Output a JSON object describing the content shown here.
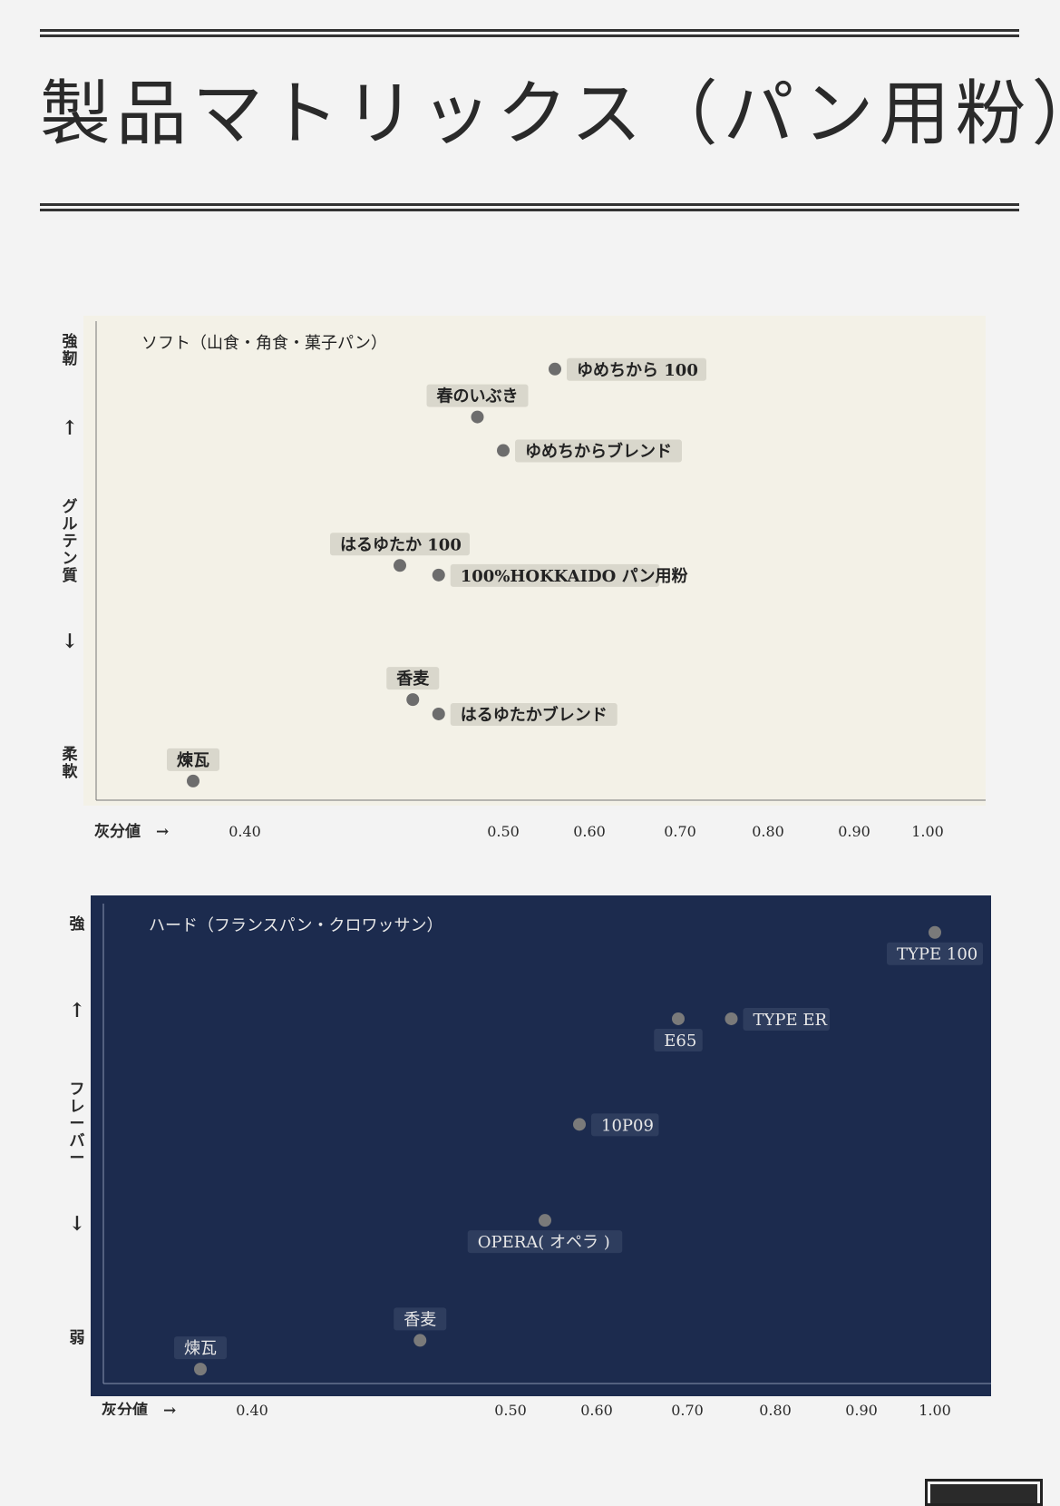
{
  "title": "製品マトリックス（パン用粉）",
  "chart_data": [
    {
      "type": "scatter",
      "title": "ソフト（山食・角食・菓子パン）",
      "xlabel": "灰分値　→",
      "ylabel_chars": {
        "top": "強靭",
        "up": "↑",
        "middle": "グルテン質",
        "down": "↓",
        "bottom": "柔軟"
      },
      "x_ticks": [
        "0.40",
        "0.50",
        "0.60",
        "0.70",
        "0.80",
        "0.90",
        "1.00"
      ],
      "colors": {
        "background": "#f3f1e7",
        "point": "#6d6d6d",
        "label_bg": "#d9d7cc",
        "text": "#222222"
      },
      "points": [
        {
          "name": "ゆめちから 100",
          "x": 0.56,
          "y": 0.9,
          "label_pos": "right"
        },
        {
          "name": "春のいぶき",
          "x": 0.49,
          "y": 0.8,
          "label_pos": "above"
        },
        {
          "name": "ゆめちからブレンド",
          "x": 0.5,
          "y": 0.73,
          "label_pos": "right"
        },
        {
          "name": "はるゆたか 100",
          "x": 0.46,
          "y": 0.49,
          "label_pos": "above"
        },
        {
          "name": "100%HOKKAIDO パン用粉",
          "x": 0.475,
          "y": 0.47,
          "label_pos": "right"
        },
        {
          "name": "香麦",
          "x": 0.465,
          "y": 0.21,
          "label_pos": "above"
        },
        {
          "name": "はるゆたかブレンド",
          "x": 0.475,
          "y": 0.18,
          "label_pos": "right"
        },
        {
          "name": "煉瓦",
          "x": 0.38,
          "y": 0.04,
          "label_pos": "above"
        }
      ]
    },
    {
      "type": "scatter",
      "title": "ハード（フランスパン・クロワッサン）",
      "xlabel": "灰分値　→",
      "ylabel_chars": {
        "top": "強",
        "up": "↑",
        "middle": "フレーバー",
        "down": "↓",
        "bottom": "弱"
      },
      "x_ticks": [
        "0.40",
        "0.50",
        "0.60",
        "0.70",
        "0.80",
        "0.90",
        "1.00"
      ],
      "colors": {
        "background": "#1c2b4e",
        "point": "#7a7a7a",
        "label_bg": "#2e3d5e",
        "text": "#e8e8e8"
      },
      "points": [
        {
          "name": "TYPE 100",
          "x": 1.0,
          "y": 0.94,
          "label_pos": "below"
        },
        {
          "name": "TYPE ER",
          "x": 0.75,
          "y": 0.76,
          "label_pos": "right"
        },
        {
          "name": "E65",
          "x": 0.69,
          "y": 0.76,
          "label_pos": "below"
        },
        {
          "name": "10P09",
          "x": 0.58,
          "y": 0.54,
          "label_pos": "right"
        },
        {
          "name": "OPERA( オペラ )",
          "x": 0.54,
          "y": 0.34,
          "label_pos": "below"
        },
        {
          "name": "香麦",
          "x": 0.465,
          "y": 0.09,
          "label_pos": "above"
        },
        {
          "name": "煉瓦",
          "x": 0.38,
          "y": 0.03,
          "label_pos": "above"
        }
      ]
    }
  ]
}
